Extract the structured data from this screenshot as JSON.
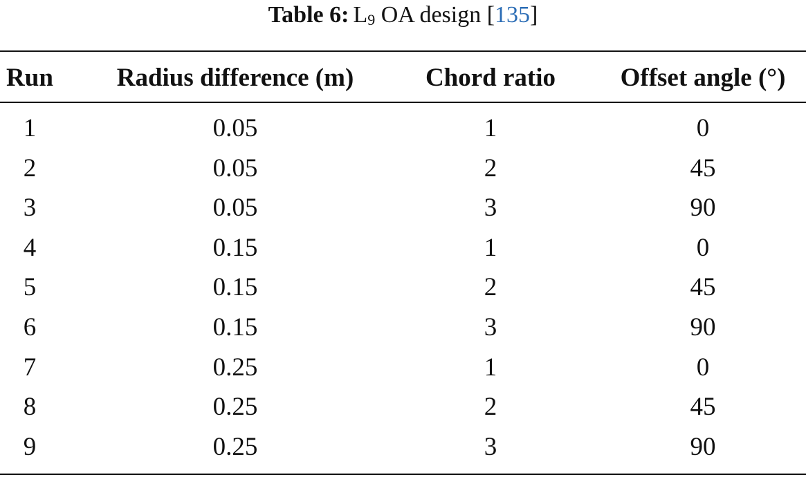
{
  "caption": {
    "label": "Table 6:",
    "title_start": "L",
    "subscript": "9",
    "title_end": "OA design [",
    "ref": "135",
    "close": "]"
  },
  "table": {
    "header": [
      "Run",
      "Radius difference (m)",
      "Chord ratio",
      "Offset angle (°)"
    ],
    "rows": [
      [
        1,
        "0.05",
        1,
        0
      ],
      [
        2,
        "0.05",
        2,
        45
      ],
      [
        3,
        "0.05",
        3,
        90
      ],
      [
        4,
        "0.15",
        1,
        0
      ],
      [
        5,
        "0.15",
        2,
        45
      ],
      [
        6,
        "0.15",
        3,
        90
      ],
      [
        7,
        "0.25",
        1,
        0
      ],
      [
        8,
        "0.25",
        2,
        45
      ],
      [
        9,
        "0.25",
        3,
        90
      ]
    ]
  }
}
